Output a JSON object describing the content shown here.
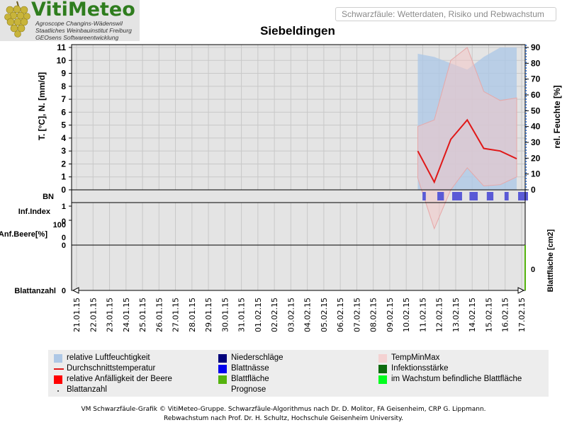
{
  "header": {
    "logo_title": "VitiMeteo",
    "logo_lines": [
      "Agroscope Changins-Wädenswil",
      "Staatliches Weinbauinstitut Freiburg",
      "GEOsens Softwareentwicklung"
    ],
    "tagline": "Schwarzfäule: Wetterdaten, Risiko und Rebwachstum"
  },
  "chart_data": {
    "type": "line",
    "title": "Siebeldingen",
    "x": [
      "21.01.15",
      "22.01.15",
      "23.01.15",
      "24.01.15",
      "25.01.15",
      "26.01.15",
      "27.01.15",
      "28.01.15",
      "29.01.15",
      "30.01.15",
      "31.01.15",
      "01.02.15",
      "02.02.15",
      "03.02.15",
      "04.02.15",
      "05.02.15",
      "06.02.15",
      "07.02.15",
      "08.02.15",
      "09.02.15",
      "10.02.15",
      "11.02.15",
      "12.02.15",
      "13.02.15",
      "14.02.15",
      "15.02.15",
      "16.02.15",
      "17.02.15"
    ],
    "ylabel_left": "T. [°C], N. [mm/d]",
    "ylabel_right": "rel. Feuchte [%]",
    "ylim_left": [
      0,
      11
    ],
    "ylim_right": [
      0,
      90
    ],
    "left_ticks": [
      "0",
      "1",
      "2",
      "3",
      "4",
      "5",
      "6",
      "7",
      "8",
      "9",
      "10",
      "11"
    ],
    "right_ticks": [
      "0",
      "10",
      "20",
      "30",
      "40",
      "50",
      "60",
      "70",
      "80",
      "90"
    ],
    "temp_x": [
      -0.3,
      0.7,
      1.7,
      2.7,
      3.7,
      4.7,
      5.7
    ],
    "temp_mean": [
      3.0,
      0.6,
      3.9,
      5.4,
      3.2,
      3.0,
      2.4
    ],
    "temp_max": [
      4.9,
      5.4,
      10.0,
      11.0,
      7.6,
      6.9,
      7.1
    ],
    "temp_min": [
      0.9,
      -3.0,
      0.0,
      1.7,
      0.3,
      0.4,
      1.0
    ],
    "humidity_x": [
      -0.3,
      0.7,
      1.7,
      2.7,
      3.7,
      4.7,
      5.7
    ],
    "humidity": [
      86,
      84,
      80,
      76,
      84,
      90,
      90
    ],
    "bn_label": "BN",
    "leaf_wetness_days": [
      0,
      1,
      2,
      3,
      4,
      5,
      6
    ],
    "leaf_wetness_width": [
      0.2,
      0.4,
      0.6,
      0.5,
      0.4,
      0.25,
      0.6
    ],
    "infindex_label": "Inf.Index",
    "infindex_ticks": [
      "1",
      "0"
    ],
    "anfbeere_label": "Anf.Beere[%]",
    "anfbeere_ticks": [
      "100",
      "0",
      "0"
    ],
    "blattanzahl_label": "Blattanzahl",
    "blattanzahl_tick": "0",
    "blattflaeche_label": "Blattfläche [cm2]",
    "blattflaeche_tick": "0",
    "data_start_index": 21
  },
  "legend": {
    "items": [
      {
        "label": "relative Luftfeuchtigkeit",
        "color": "#aec8e6",
        "kind": "box"
      },
      {
        "label": "Niederschläge",
        "color": "#00007a",
        "kind": "box"
      },
      {
        "label": "TempMinMax",
        "color": "#f4d2d2",
        "kind": "box"
      },
      {
        "label": "Durchschnittstemperatur",
        "color": "#e01818",
        "kind": "line"
      },
      {
        "label": "Blattnässe",
        "color": "#0000ee",
        "kind": "box"
      },
      {
        "label": "Infektionsstärke",
        "color": "#0d6a0d",
        "kind": "box"
      },
      {
        "label": "relative Anfälligkeit der Beere",
        "color": "#ff0000",
        "kind": "box"
      },
      {
        "label": "Blattfläche",
        "color": "#55b30e",
        "kind": "box"
      },
      {
        "label": "im Wachstum befindliche Blattfläche",
        "color": "#00ff1e",
        "kind": "box"
      },
      {
        "label": "Blattanzahl",
        "color": "#555555",
        "kind": "dot"
      },
      {
        "label": "Prognose",
        "color": "",
        "kind": "none"
      }
    ]
  },
  "footer": {
    "line1": "VM Schwarzfäule-Grafik © VitiMeteo-Gruppe. Schwarzfäule-Algorithmus nach Dr. D. Molitor, FA Geisenheim, CRP G. Lippmann.",
    "line2": "Rebwachstum nach Prof. Dr. H. Schultz, Hochschule Geisenheim University."
  }
}
